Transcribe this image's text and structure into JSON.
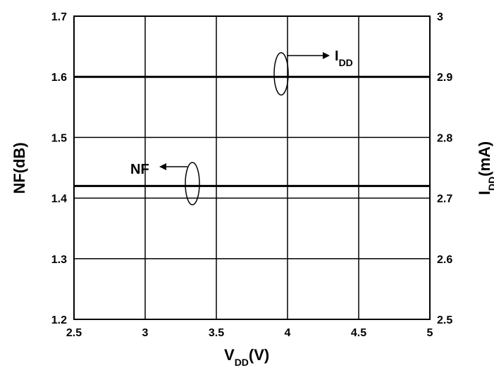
{
  "chart_data": {
    "type": "line",
    "x": [
      2.5,
      3,
      3.5,
      4,
      4.5,
      5
    ],
    "xlim": [
      2.5,
      5
    ],
    "ylim": [
      1.2,
      1.7
    ],
    "y2lim": [
      2.5,
      3.0
    ],
    "xticks": [
      "2.5",
      "3",
      "3.5",
      "4",
      "4.5",
      "5"
    ],
    "yticks": [
      "1.2",
      "1.3",
      "1.4",
      "1.5",
      "1.6",
      "1.7"
    ],
    "y2ticks": [
      "2.5",
      "2.6",
      "2.7",
      "2.8",
      "2.9",
      "3"
    ],
    "xlabel_main": "V",
    "xlabel_sub": "DD",
    "xlabel_unit": "(V)",
    "ylabel": "NF(dB)",
    "y2label_main": "I",
    "y2label_sub": "DD",
    "y2label_unit": "(mA)",
    "grid": true,
    "series": [
      {
        "name": "NF",
        "axis": "left",
        "values": [
          1.42,
          1.42,
          1.42,
          1.42,
          1.42,
          1.42
        ],
        "color": "#000000"
      },
      {
        "name": "IDD",
        "axis": "right",
        "values": [
          2.9,
          2.9,
          2.9,
          2.9,
          2.9,
          2.9
        ],
        "color": "#000000"
      }
    ],
    "annotations": {
      "nf_text": "NF",
      "idd_main": "I",
      "idd_sub": "DD"
    }
  }
}
